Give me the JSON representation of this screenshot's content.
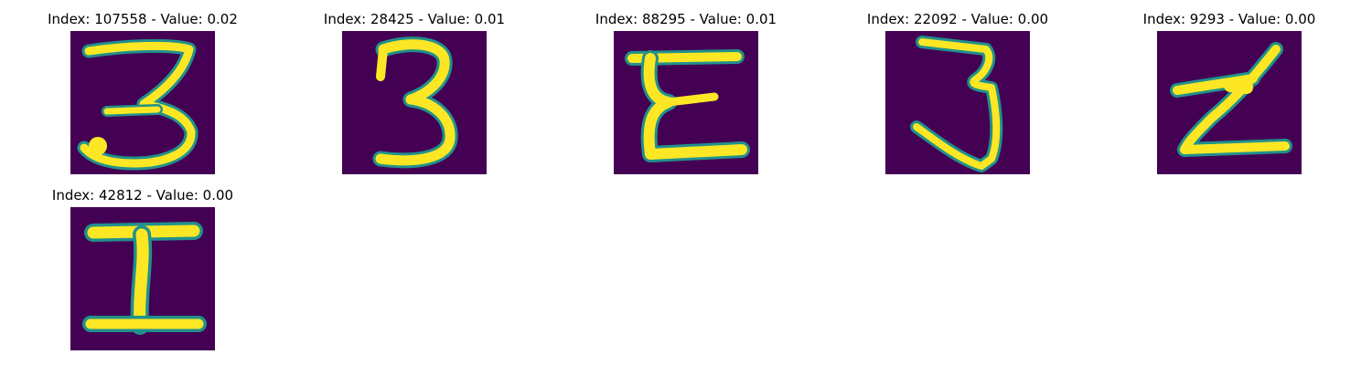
{
  "colors": {
    "background": "#440154",
    "stroke_mid": "#21918c",
    "stroke_high": "#fde725",
    "stroke_edge": "#3b528b"
  },
  "panels": [
    {
      "title": "Index: 107558 - Value: 0.02",
      "glyph": "3"
    },
    {
      "title": "Index: 28425 - Value: 0.01",
      "glyph": "3"
    },
    {
      "title": "Index: 88295 - Value: 0.01",
      "glyph": "E"
    },
    {
      "title": "Index: 22092 - Value: 0.00",
      "glyph": "3"
    },
    {
      "title": "Index: 9293 - Value: 0.00",
      "glyph": "Z"
    },
    {
      "title": "Index: 42812 - Value: 0.00",
      "glyph": "I"
    }
  ]
}
